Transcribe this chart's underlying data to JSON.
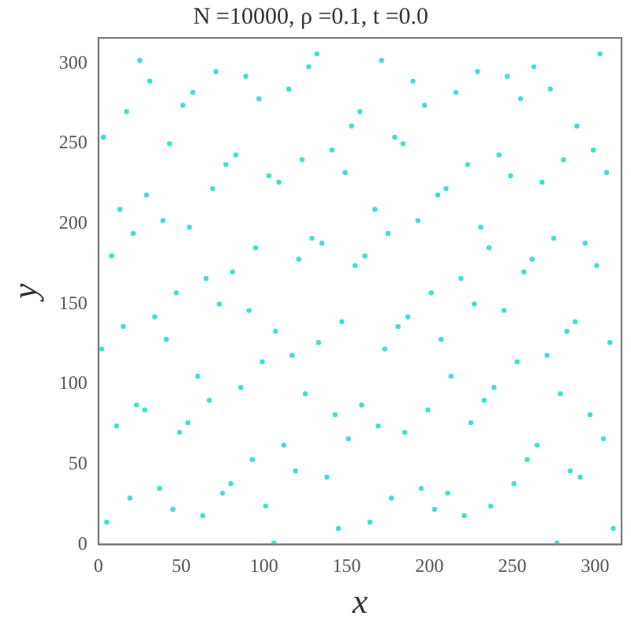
{
  "chart_data": {
    "type": "scatter",
    "title": "N =10000, ρ =0.1, t =0.0",
    "xlabel": "x",
    "ylabel": "y",
    "xlim": [
      0,
      316
    ],
    "ylim": [
      0,
      316
    ],
    "xticks": [
      0,
      50,
      100,
      150,
      200,
      250,
      300
    ],
    "yticks": [
      0,
      50,
      100,
      150,
      200,
      250,
      300
    ],
    "grid": false,
    "legend": false,
    "marker": "circle",
    "series": [
      {
        "color": "#40e0d0",
        "x": [
          5,
          19,
          11,
          23,
          2,
          15,
          8,
          21,
          13,
          3,
          17,
          25,
          45,
          37,
          49,
          28,
          41,
          34,
          47,
          39,
          29,
          43,
          51,
          31,
          63,
          75,
          54,
          67,
          60,
          73,
          65,
          55,
          69,
          77,
          57,
          71,
          101,
          80,
          93,
          86,
          99,
          91,
          81,
          95,
          103,
          83,
          97,
          89,
          106,
          119,
          112,
          125,
          117,
          107,
          121,
          129,
          109,
          123,
          115,
          127,
          145,
          138,
          151,
          143,
          133,
          147,
          155,
          135,
          149,
          141,
          153,
          132,
          164,
          177,
          169,
          159,
          173,
          181,
          161,
          175,
          167,
          179,
          158,
          171,
          203,
          195,
          185,
          199,
          207,
          187,
          201,
          193,
          205,
          184,
          197,
          190,
          221,
          211,
          225,
          233,
          213,
          227,
          219,
          231,
          210,
          223,
          216,
          229,
          237,
          251,
          259,
          239,
          253,
          245,
          257,
          236,
          249,
          242,
          255,
          247,
          277,
          285,
          265,
          279,
          271,
          283,
          262,
          275,
          268,
          281,
          273,
          263,
          311,
          291,
          305,
          297,
          309,
          288,
          301,
          294,
          307,
          299,
          289,
          303
        ],
        "values": [
          14,
          29,
          74,
          87,
          122,
          136,
          180,
          194,
          209,
          254,
          270,
          302,
          22,
          35,
          70,
          84,
          128,
          142,
          157,
          202,
          218,
          250,
          274,
          289,
          18,
          32,
          76,
          90,
          105,
          150,
          166,
          198,
          222,
          237,
          282,
          295,
          24,
          38,
          53,
          98,
          114,
          146,
          170,
          185,
          230,
          243,
          278,
          292,
          1,
          46,
          62,
          94,
          118,
          133,
          178,
          191,
          226,
          240,
          284,
          298,
          10,
          42,
          66,
          81,
          126,
          139,
          174,
          188,
          232,
          246,
          261,
          306,
          14,
          29,
          74,
          87,
          122,
          136,
          180,
          194,
          209,
          254,
          270,
          302,
          22,
          35,
          70,
          84,
          128,
          142,
          157,
          202,
          218,
          250,
          274,
          289,
          18,
          32,
          76,
          90,
          105,
          150,
          166,
          198,
          222,
          237,
          282,
          295,
          24,
          38,
          53,
          98,
          114,
          146,
          170,
          185,
          230,
          243,
          278,
          292,
          1,
          46,
          62,
          94,
          118,
          133,
          178,
          191,
          226,
          240,
          284,
          298,
          10,
          42,
          66,
          81,
          126,
          139,
          174,
          188,
          232,
          246,
          261,
          306
        ]
      }
    ]
  }
}
